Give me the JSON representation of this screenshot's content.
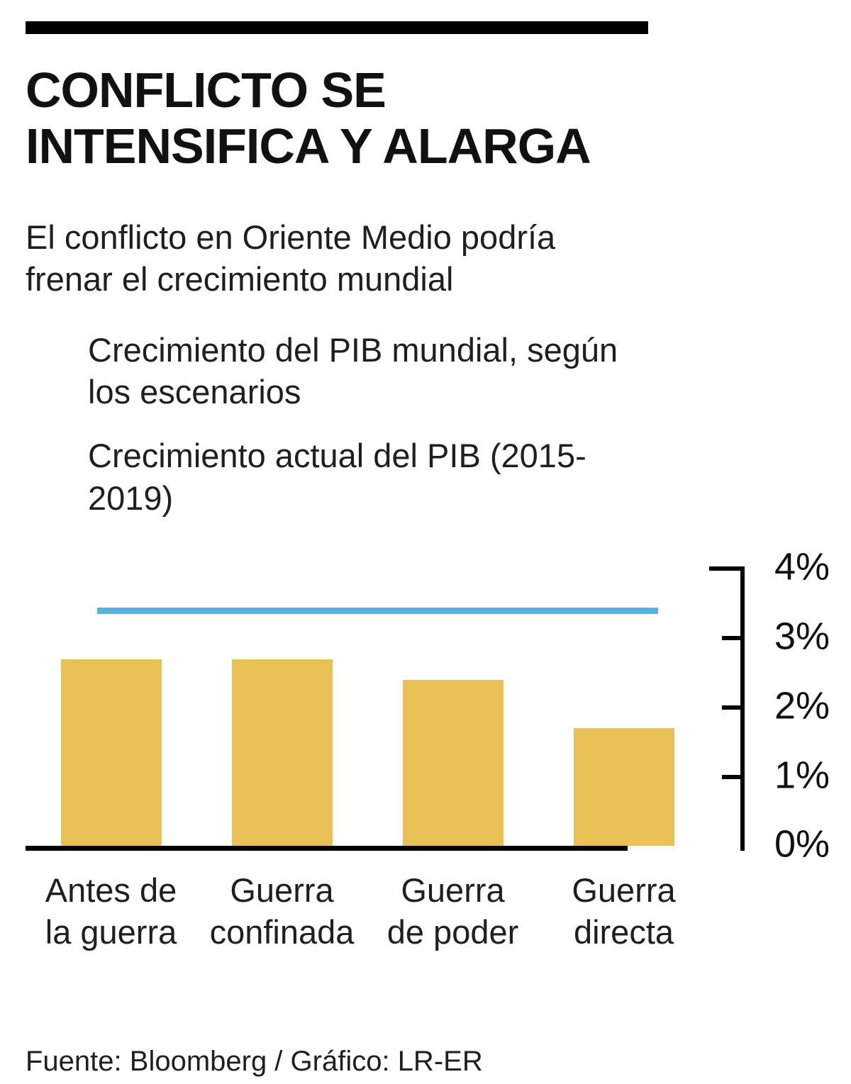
{
  "header": {
    "title": "CONFLICTO SE INTENSIFICA Y ALARGA",
    "subtitle": "El conflicto en Oriente Medio podría frenar el crecimiento mundial"
  },
  "legend": {
    "bars": "Crecimiento del PIB mundial, según los escenarios",
    "line": "Crecimiento actual del PIB (2015-2019)"
  },
  "footer": {
    "source": "Fuente: Bloomberg / Gráfico: LR-ER"
  },
  "colors": {
    "bar": "#e9c157",
    "line": "#57b2e2",
    "axis": "#000000",
    "text": "#1a1a1a"
  },
  "chart_data": {
    "type": "bar",
    "title": "Conflicto se intensifica y alarga",
    "subtitle": "El conflicto en Oriente Medio podría frenar el crecimiento mundial",
    "categories": [
      [
        "Antes de",
        "la guerra"
      ],
      [
        "Guerra",
        "confinada"
      ],
      [
        "Guerra",
        "de poder"
      ],
      [
        "Guerra",
        "directa"
      ]
    ],
    "series_label": "Crecimiento del PIB mundial, según los escenarios",
    "values": [
      2.7,
      2.7,
      2.4,
      1.7
    ],
    "reference_line": {
      "label": "Crecimiento actual del PIB (2015-2019)",
      "value": 3.4
    },
    "xlabel": "",
    "ylabel": "",
    "ylim": [
      0,
      4
    ],
    "yticks": [
      0,
      1,
      2,
      3,
      4
    ],
    "ytick_format": "{v}%",
    "y_axis_side": "right",
    "grid": false,
    "legend_position": "top-left",
    "source": "Fuente: Bloomberg / Gráfico: LR-ER"
  }
}
